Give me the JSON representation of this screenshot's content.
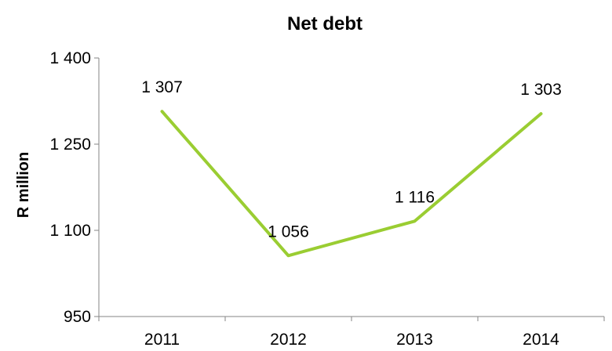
{
  "chart_data": {
    "type": "line",
    "title": "Net debt",
    "xlabel": "",
    "ylabel": "R million",
    "categories": [
      "2011",
      "2012",
      "2013",
      "2014"
    ],
    "series": [
      {
        "values": [
          1307,
          1056,
          1116,
          1303
        ],
        "data_labels": [
          "1 307",
          "1 056",
          "1 116",
          "1 303"
        ],
        "color": "#9ACD32"
      }
    ],
    "ylim": [
      950,
      1400
    ],
    "yticks": [
      950,
      1100,
      1250,
      1400
    ],
    "ytick_labels": [
      "950",
      "1 100",
      "1 250",
      "1 400"
    ],
    "grid": false,
    "legend": "none"
  }
}
